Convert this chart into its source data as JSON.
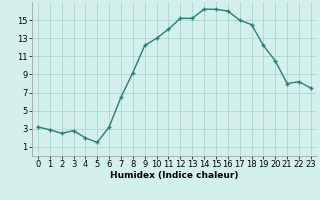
{
  "title": "",
  "xlabel": "Humidex (Indice chaleur)",
  "x": [
    0,
    1,
    2,
    3,
    4,
    5,
    6,
    7,
    8,
    9,
    10,
    11,
    12,
    13,
    14,
    15,
    16,
    17,
    18,
    19,
    20,
    21,
    22,
    23
  ],
  "y": [
    3.2,
    2.9,
    2.5,
    2.8,
    2.0,
    1.5,
    3.2,
    6.5,
    9.2,
    12.2,
    13.0,
    14.0,
    15.2,
    15.2,
    16.2,
    16.2,
    16.0,
    15.0,
    14.5,
    12.2,
    10.5,
    8.0,
    8.2,
    7.5
  ],
  "line_color": "#2e7d6e",
  "marker": "+",
  "bg_color": "#d4f0ec",
  "grid_color": "#a8d8d0",
  "ylim": [
    0,
    17
  ],
  "yticks": [
    1,
    3,
    5,
    7,
    9,
    11,
    13,
    15
  ],
  "xlim": [
    -0.5,
    23.5
  ],
  "xticks": [
    0,
    1,
    2,
    3,
    4,
    5,
    6,
    7,
    8,
    9,
    10,
    11,
    12,
    13,
    14,
    15,
    16,
    17,
    18,
    19,
    20,
    21,
    22,
    23
  ],
  "xlabel_fontsize": 6.5,
  "tick_fontsize": 6.0,
  "marker_size": 3,
  "linewidth": 1.0
}
